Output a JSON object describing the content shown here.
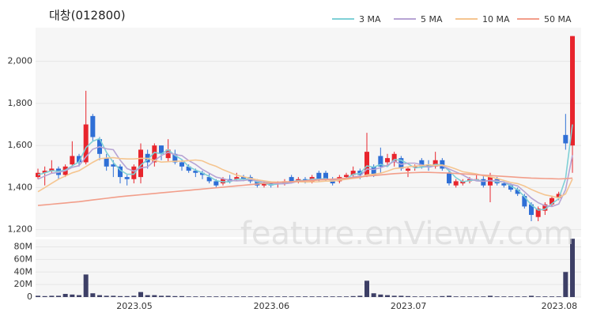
{
  "watermark": "feature.enViewV.com",
  "chart_data": [
    {
      "type": "candlestick",
      "title": "대창(012800)",
      "up_color": "#e8252d",
      "down_color": "#2f6fd6",
      "open": [
        1450,
        1470,
        1480,
        1490,
        1460,
        1510,
        1550,
        1520,
        1740,
        1630,
        1540,
        1510,
        1500,
        1450,
        1440,
        1450,
        1560,
        1520,
        1600,
        1540,
        1560,
        1520,
        1500,
        1480,
        1470,
        1450,
        1430,
        1420,
        1440,
        1440,
        1450,
        1450,
        1430,
        1410,
        1420,
        1415,
        1420,
        1450,
        1430,
        1440,
        1430,
        1470,
        1470,
        1440,
        1430,
        1450,
        1460,
        1480,
        1460,
        1500,
        1550,
        1520,
        1520,
        1540,
        1480,
        1500,
        1530,
        1510,
        1500,
        1530,
        1470,
        1410,
        1420,
        1430,
        1440,
        1440,
        1410,
        1440,
        1420,
        1410,
        1390,
        1360,
        1320,
        1260,
        1290,
        1320,
        1350,
        1650,
        1600
      ],
      "high": [
        1490,
        1500,
        1530,
        1500,
        1510,
        1620,
        1560,
        1860,
        1750,
        1640,
        1560,
        1530,
        1510,
        1460,
        1510,
        1610,
        1580,
        1610,
        1600,
        1630,
        1580,
        1530,
        1510,
        1490,
        1480,
        1470,
        1440,
        1450,
        1460,
        1470,
        1460,
        1460,
        1440,
        1430,
        1430,
        1430,
        1440,
        1460,
        1450,
        1450,
        1460,
        1480,
        1480,
        1450,
        1460,
        1470,
        1500,
        1490,
        1660,
        1510,
        1590,
        1560,
        1570,
        1550,
        1500,
        1510,
        1540,
        1530,
        1570,
        1540,
        1480,
        1440,
        1440,
        1450,
        1460,
        1460,
        1470,
        1450,
        1430,
        1420,
        1400,
        1370,
        1330,
        1310,
        1330,
        1360,
        1380,
        1750,
        2120
      ],
      "low": [
        1440,
        1410,
        1470,
        1440,
        1450,
        1500,
        1500,
        1510,
        1620,
        1530,
        1480,
        1450,
        1420,
        1410,
        1420,
        1420,
        1490,
        1500,
        1530,
        1520,
        1510,
        1480,
        1470,
        1450,
        1440,
        1420,
        1400,
        1410,
        1420,
        1430,
        1430,
        1420,
        1400,
        1400,
        1400,
        1400,
        1410,
        1420,
        1420,
        1420,
        1420,
        1430,
        1430,
        1410,
        1420,
        1440,
        1450,
        1440,
        1450,
        1450,
        1470,
        1500,
        1500,
        1480,
        1450,
        1480,
        1490,
        1480,
        1490,
        1480,
        1410,
        1400,
        1410,
        1420,
        1430,
        1400,
        1330,
        1410,
        1400,
        1380,
        1360,
        1300,
        1240,
        1240,
        1270,
        1310,
        1340,
        1580,
        1470
      ],
      "close": [
        1470,
        1480,
        1490,
        1460,
        1500,
        1550,
        1520,
        1700,
        1640,
        1560,
        1500,
        1500,
        1450,
        1440,
        1500,
        1580,
        1520,
        1600,
        1560,
        1580,
        1520,
        1500,
        1480,
        1470,
        1460,
        1430,
        1410,
        1440,
        1430,
        1450,
        1440,
        1430,
        1410,
        1420,
        1410,
        1420,
        1430,
        1430,
        1440,
        1430,
        1450,
        1440,
        1440,
        1420,
        1450,
        1460,
        1480,
        1460,
        1570,
        1460,
        1500,
        1540,
        1560,
        1490,
        1490,
        1500,
        1500,
        1500,
        1530,
        1490,
        1420,
        1430,
        1430,
        1440,
        1440,
        1410,
        1450,
        1420,
        1410,
        1390,
        1370,
        1310,
        1270,
        1300,
        1320,
        1350,
        1370,
        1610,
        2120
      ],
      "series": [
        {
          "name": "3 MA",
          "color": "#7fd0d6",
          "values": [
            1460,
            1470,
            1480,
            1477,
            1483,
            1503,
            1523,
            1590,
            1620,
            1633,
            1567,
            1520,
            1483,
            1463,
            1463,
            1507,
            1533,
            1567,
            1560,
            1580,
            1553,
            1533,
            1500,
            1483,
            1470,
            1453,
            1433,
            1427,
            1427,
            1440,
            1440,
            1440,
            1427,
            1420,
            1413,
            1417,
            1420,
            1427,
            1433,
            1433,
            1440,
            1440,
            1443,
            1433,
            1437,
            1443,
            1463,
            1467,
            1503,
            1497,
            1510,
            1500,
            1533,
            1530,
            1513,
            1493,
            1497,
            1500,
            1510,
            1507,
            1480,
            1447,
            1427,
            1433,
            1437,
            1430,
            1433,
            1427,
            1427,
            1407,
            1390,
            1357,
            1317,
            1293,
            1297,
            1323,
            1347,
            1443,
            1700
          ]
        },
        {
          "name": "5 MA",
          "color": "#b7a4d4",
          "values": [
            1440,
            1455,
            1468,
            1472,
            1480,
            1496,
            1504,
            1546,
            1582,
            1594,
            1584,
            1580,
            1530,
            1490,
            1478,
            1494,
            1498,
            1528,
            1552,
            1568,
            1556,
            1552,
            1528,
            1510,
            1486,
            1468,
            1450,
            1442,
            1434,
            1432,
            1434,
            1438,
            1432,
            1428,
            1422,
            1418,
            1418,
            1422,
            1430,
            1432,
            1436,
            1438,
            1440,
            1436,
            1440,
            1442,
            1450,
            1454,
            1488,
            1486,
            1494,
            1506,
            1526,
            1510,
            1516,
            1516,
            1508,
            1496,
            1504,
            1504,
            1488,
            1474,
            1460,
            1442,
            1432,
            1430,
            1434,
            1432,
            1426,
            1416,
            1408,
            1380,
            1350,
            1328,
            1314,
            1310,
            1322,
            1390,
            1554
          ]
        },
        {
          "name": "10 MA",
          "color": "#f5c590",
          "values": [
            1380,
            1400,
            1420,
            1440,
            1455,
            1470,
            1480,
            1500,
            1520,
            1537,
            1540,
            1542,
            1538,
            1536,
            1536,
            1539,
            1539,
            1529,
            1521,
            1523,
            1525,
            1525,
            1528,
            1531,
            1527,
            1512,
            1501,
            1485,
            1472,
            1459,
            1451,
            1444,
            1437,
            1432,
            1427,
            1426,
            1428,
            1427,
            1428,
            1426,
            1427,
            1428,
            1431,
            1431,
            1435,
            1439,
            1444,
            1447,
            1460,
            1463,
            1468,
            1478,
            1490,
            1494,
            1498,
            1502,
            1504,
            1508,
            1504,
            1507,
            1499,
            1488,
            1475,
            1470,
            1465,
            1456,
            1451,
            1443,
            1434,
            1424,
            1419,
            1407,
            1391,
            1377,
            1365,
            1359,
            1351,
            1370,
            1441
          ]
        },
        {
          "name": "50 MA",
          "color": "#f29e8a",
          "values": [
            1315,
            1318,
            1321,
            1324,
            1327,
            1330,
            1333,
            1337,
            1341,
            1345,
            1349,
            1353,
            1357,
            1360,
            1363,
            1366,
            1369,
            1372,
            1375,
            1378,
            1381,
            1384,
            1387,
            1390,
            1393,
            1396,
            1399,
            1402,
            1405,
            1408,
            1411,
            1414,
            1417,
            1420,
            1422,
            1424,
            1426,
            1428,
            1430,
            1432,
            1434,
            1436,
            1438,
            1440,
            1442,
            1444,
            1447,
            1450,
            1454,
            1457,
            1460,
            1463,
            1466,
            1468,
            1470,
            1471,
            1472,
            1472,
            1471,
            1470,
            1469,
            1467,
            1465,
            1463,
            1461,
            1459,
            1457,
            1455,
            1453,
            1451,
            1449,
            1447,
            1445,
            1444,
            1443,
            1442,
            1441,
            1442,
            1445
          ]
        }
      ],
      "ylim": [
        1165,
        2160
      ],
      "yticks": [
        {
          "value": 1200,
          "label": "1,200"
        },
        {
          "value": 1400,
          "label": "1,400"
        },
        {
          "value": 1600,
          "label": "1,600"
        },
        {
          "value": 1800,
          "label": "1,800"
        },
        {
          "value": 2000,
          "label": "2,000"
        }
      ],
      "grid": true
    },
    {
      "type": "bar",
      "color": "#3d3f66",
      "categories": [
        null,
        null,
        null,
        null,
        null,
        null,
        null,
        null,
        null,
        null,
        null,
        null,
        null,
        null,
        null,
        "2023.05",
        null,
        null,
        null,
        null,
        null,
        null,
        null,
        null,
        null,
        null,
        null,
        null,
        null,
        null,
        null,
        null,
        null,
        null,
        null,
        "2023.06",
        null,
        null,
        null,
        null,
        null,
        null,
        null,
        null,
        null,
        null,
        null,
        null,
        null,
        null,
        null,
        null,
        null,
        null,
        null,
        "2023.07",
        null,
        null,
        null,
        null,
        null,
        null,
        null,
        null,
        null,
        null,
        null,
        null,
        null,
        null,
        null,
        null,
        null,
        null,
        null,
        null,
        null,
        "2023.08",
        null
      ],
      "values": [
        2,
        1.5,
        2,
        2,
        5,
        4,
        3,
        36,
        6,
        3,
        2,
        2,
        1.5,
        1.5,
        2,
        8,
        3,
        3,
        2,
        2,
        1.5,
        1.5,
        1,
        1,
        1,
        1,
        1,
        1,
        1,
        1,
        1,
        1,
        1,
        1,
        1,
        1,
        1,
        1,
        1,
        1,
        1,
        1,
        1,
        1,
        1,
        1,
        1.5,
        2,
        26,
        6,
        4,
        3,
        2,
        2,
        1.5,
        1,
        1,
        1,
        1,
        1.5,
        2,
        1,
        1,
        1,
        1,
        1,
        2,
        1,
        1,
        1,
        1,
        1,
        2,
        1,
        1,
        1,
        1,
        40,
        93
      ],
      "ylim": [
        0,
        92
      ],
      "yticks": [
        0,
        {
          "value": 20,
          "label": "20M"
        },
        {
          "value": 40,
          "label": "40M"
        },
        {
          "value": 60,
          "label": "60M"
        },
        {
          "value": 80,
          "label": "80M"
        }
      ],
      "grid": true
    }
  ]
}
